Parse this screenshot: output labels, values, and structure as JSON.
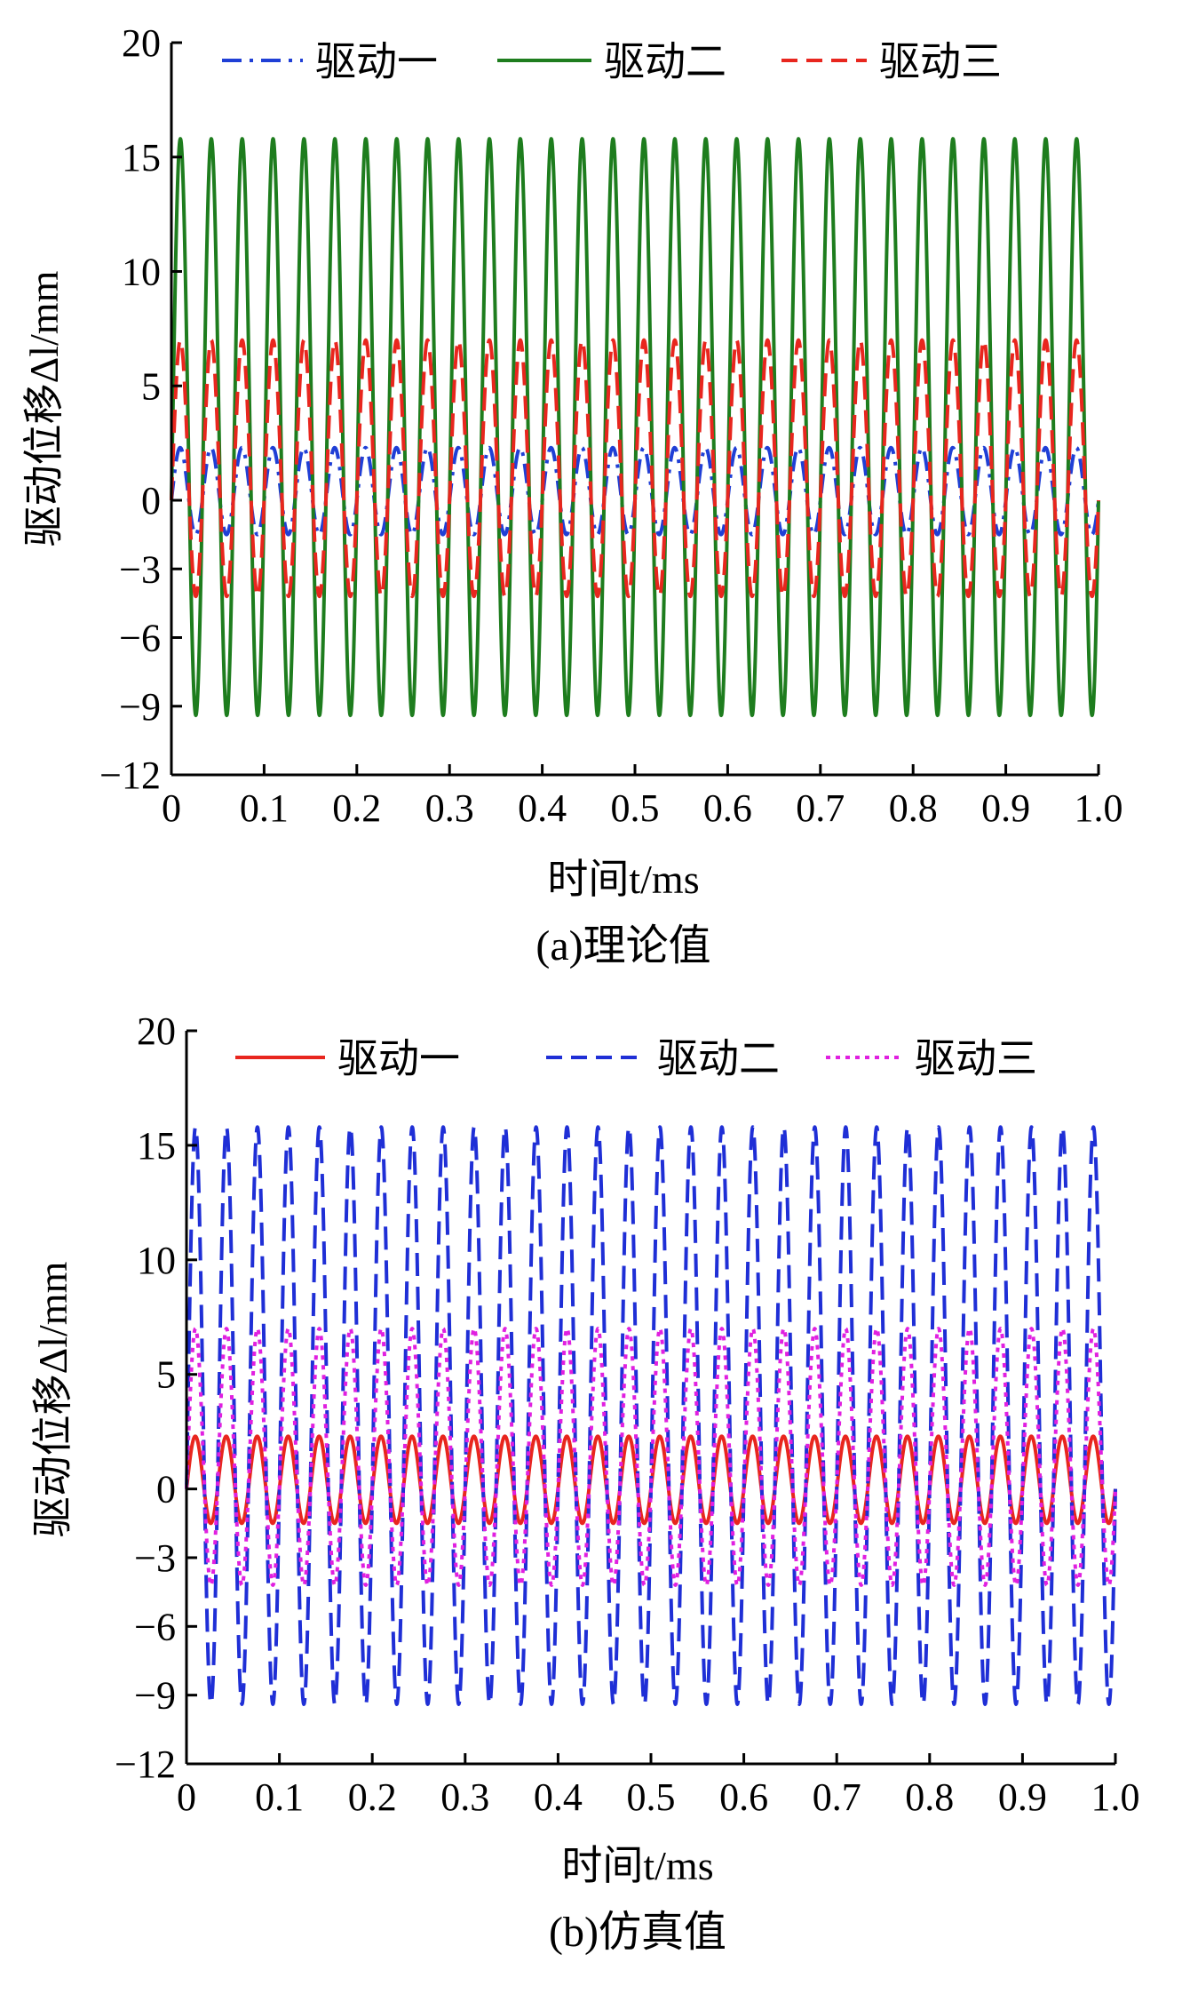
{
  "chart_data": [
    {
      "type": "line",
      "caption": "(a)理论值",
      "xlabel": "时间t/ms",
      "ylabel": "驱动位移Δl/mm",
      "xlim": [
        0,
        1.0
      ],
      "ylim": [
        -12,
        20
      ],
      "xticks": [
        "0",
        "0.1",
        "0.2",
        "0.3",
        "0.4",
        "0.5",
        "0.6",
        "0.7",
        "0.8",
        "0.9",
        "1.0"
      ],
      "yticks": [
        "20",
        "15",
        "10",
        "5",
        "0",
        "−3",
        "−6",
        "−9",
        "−12"
      ],
      "legend_position": "top",
      "cycles": 30,
      "series": [
        {
          "name": "驱动一",
          "color": "#1f3fd6",
          "style": "dashdot",
          "min": -1.5,
          "max": 2.3,
          "start": 0
        },
        {
          "name": "驱动二",
          "color": "#1e7d1e",
          "style": "solid",
          "min": -9.4,
          "max": 15.8,
          "start": 0
        },
        {
          "name": "驱动三",
          "color": "#e8261e",
          "style": "dashed",
          "min": -4.2,
          "max": 7.0,
          "start": 0
        }
      ]
    },
    {
      "type": "line",
      "caption": "(b)仿真值",
      "xlabel": "时间t/ms",
      "ylabel": "驱动位移Δl/mm",
      "xlim": [
        0,
        1.0
      ],
      "ylim": [
        -12,
        20
      ],
      "xticks": [
        "0",
        "0.1",
        "0.2",
        "0.3",
        "0.4",
        "0.5",
        "0.6",
        "0.7",
        "0.8",
        "0.9",
        "1.0"
      ],
      "yticks": [
        "20",
        "15",
        "10",
        "5",
        "0",
        "−3",
        "−6",
        "−9",
        "−12"
      ],
      "legend_position": "top",
      "cycles": 30,
      "series": [
        {
          "name": "驱动一",
          "color": "#e8261e",
          "style": "solid",
          "min": -1.5,
          "max": 2.3,
          "start": 0
        },
        {
          "name": "驱动二",
          "color": "#1f2fd6",
          "style": "dashed",
          "min": -9.4,
          "max": 15.8,
          "start": 0
        },
        {
          "name": "驱动三",
          "color": "#e020e0",
          "style": "dotted",
          "min": -4.2,
          "max": 7.0,
          "start": 0
        }
      ]
    }
  ]
}
